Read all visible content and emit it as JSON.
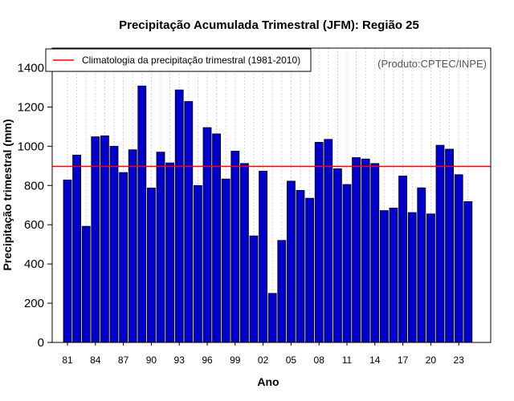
{
  "chart_data": {
    "type": "bar",
    "title": "Precipitação Acumulada Trimestral (JFM): Região 25",
    "xlabel": "Ano",
    "ylabel": "Precipitação trimestral (mm)",
    "credit": "(Produto:CPTEC/INPE)",
    "ylim": [
      0,
      1500
    ],
    "yticks": [
      0,
      200,
      400,
      600,
      800,
      1000,
      1200,
      1400
    ],
    "xtick_labels": [
      "81",
      "84",
      "87",
      "90",
      "93",
      "96",
      "99",
      "02",
      "05",
      "08",
      "11",
      "14",
      "17",
      "20",
      "23"
    ],
    "x_label_every": 3,
    "categories": [
      1981,
      1982,
      1983,
      1984,
      1985,
      1986,
      1987,
      1988,
      1989,
      1990,
      1991,
      1992,
      1993,
      1994,
      1995,
      1996,
      1997,
      1998,
      1999,
      2000,
      2001,
      2002,
      2003,
      2004,
      2005,
      2006,
      2007,
      2008,
      2009,
      2010,
      2011,
      2012,
      2013,
      2014,
      2015,
      2016,
      2017,
      2018,
      2019,
      2020,
      2021,
      2022,
      2023,
      2024
    ],
    "values": [
      828,
      955,
      592,
      1048,
      1053,
      1000,
      866,
      982,
      1307,
      787,
      970,
      915,
      1287,
      1228,
      800,
      1095,
      1063,
      833,
      975,
      912,
      543,
      873,
      250,
      520,
      822,
      775,
      735,
      1020,
      1035,
      885,
      805,
      942,
      935,
      912,
      672,
      685,
      848,
      662,
      788,
      655,
      1005,
      985,
      855,
      718
    ],
    "climatology": {
      "label": "Climatologia da precipitação trimestral (1981-2010)",
      "value": 897,
      "color": "#ff0000"
    },
    "bar_color": "#0000cd",
    "grid_color": "#cccccc",
    "grid": "vertical dotted",
    "legend_position": "top-left"
  }
}
